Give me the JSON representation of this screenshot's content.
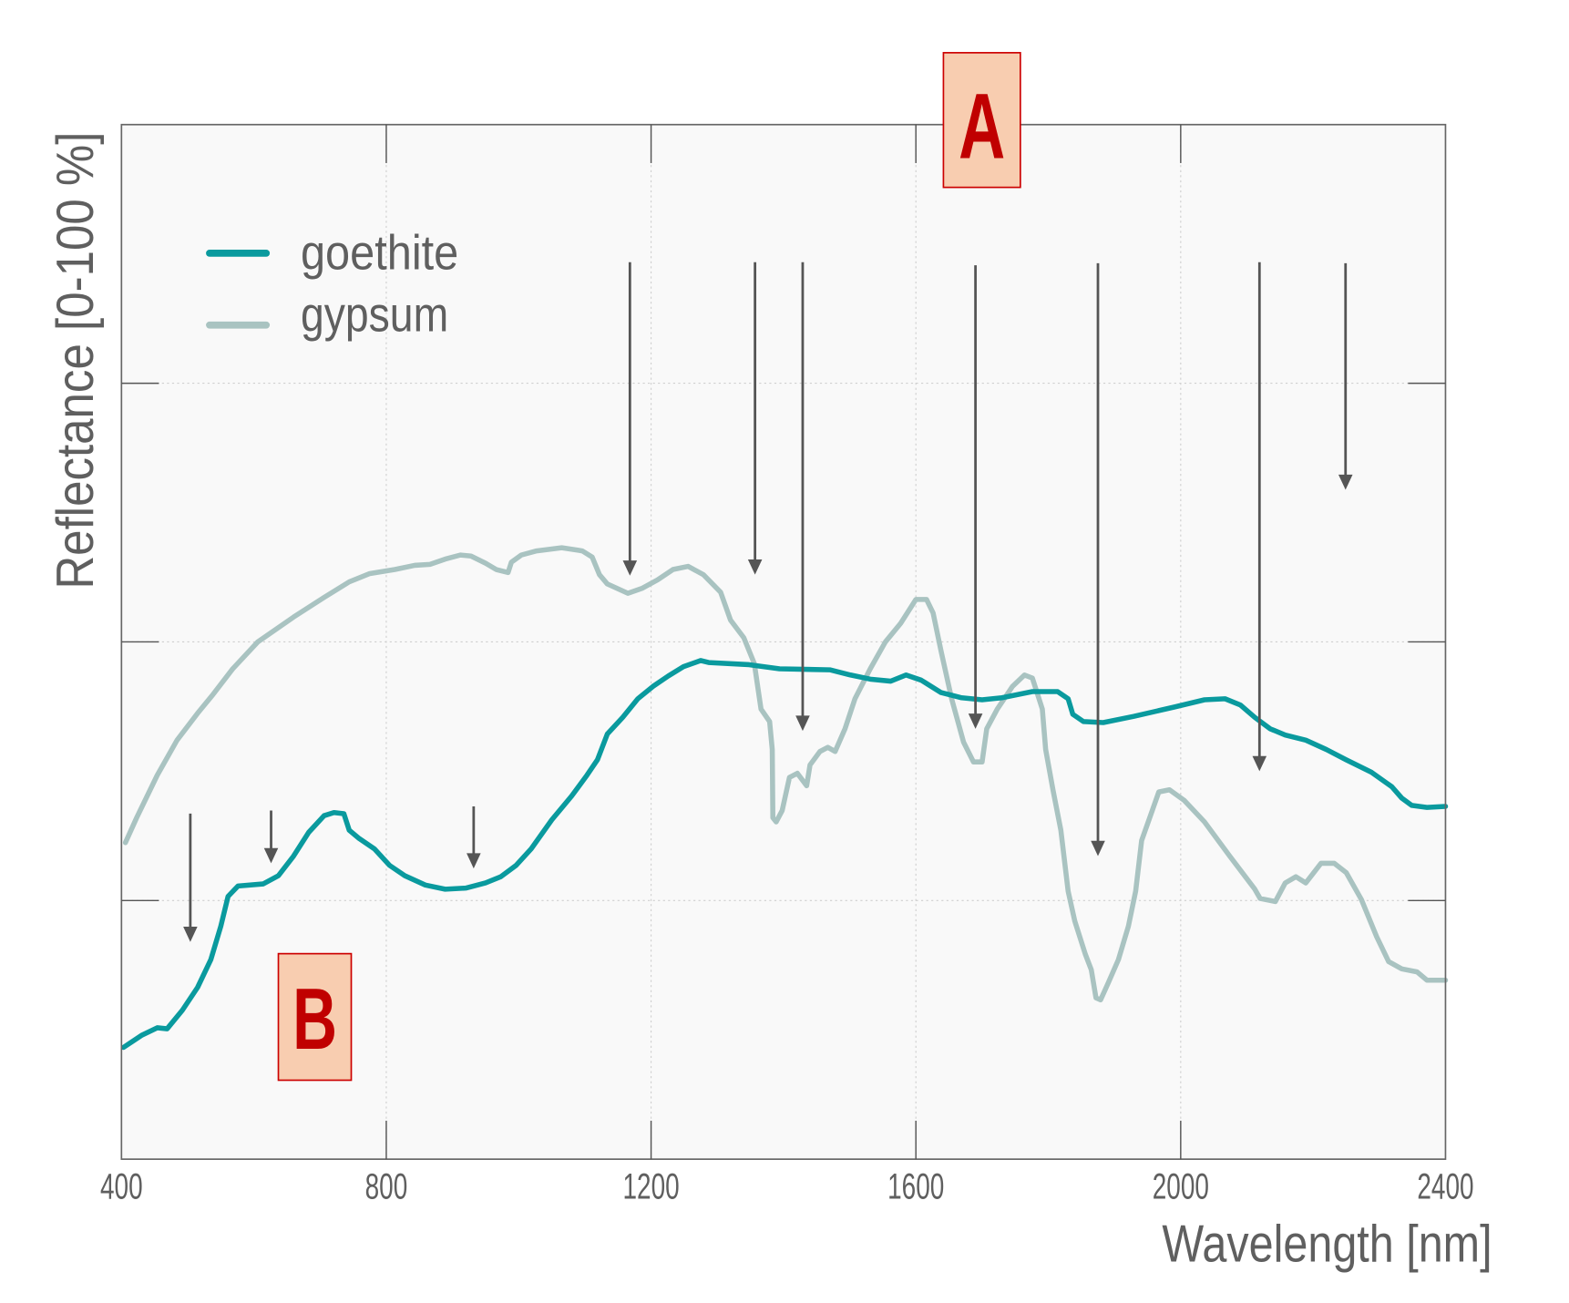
{
  "chart_data": {
    "type": "line",
    "title": "",
    "xlabel": "Wavelength [nm]",
    "ylabel": "Reflectance [0-100 %]",
    "xlim": [
      400,
      2400
    ],
    "ylim": [
      0,
      100
    ],
    "xticks": [
      400,
      800,
      1200,
      1600,
      2000,
      2400
    ],
    "xtick_labels": [
      "400",
      "800",
      "1200",
      "1600",
      "2000",
      "2400"
    ],
    "yticks": [
      25,
      50,
      75
    ],
    "grid": true,
    "legend_position": "top-left",
    "colors": {
      "goethite": "#0a9a9e",
      "gypsum": "#a9c3c1",
      "arrow": "#555555",
      "box_fill": "#f8cdb0",
      "box_border": "#cc0000",
      "box_text": "#c00000"
    },
    "series": [
      {
        "name": "goethite",
        "x": [
          403,
          431,
          454,
          469,
          492,
          515,
          535,
          550,
          561,
          576,
          614,
          637,
          660,
          683,
          706,
          721,
          736,
          744,
          759,
          782,
          805,
          828,
          859,
          889,
          920,
          950,
          973,
          996,
          1019,
          1050,
          1080,
          1103,
          1119,
          1134,
          1157,
          1180,
          1203,
          1226,
          1249,
          1275,
          1287,
          1348,
          1394,
          1470,
          1501,
          1531,
          1562,
          1585,
          1608,
          1638,
          1669,
          1700,
          1730,
          1776,
          1814,
          1830,
          1837,
          1853,
          1883,
          1929,
          1990,
          2036,
          2067,
          2090,
          2112,
          2135,
          2158,
          2189,
          2220,
          2250,
          2288,
          2319,
          2334,
          2349,
          2372,
          2400
        ],
        "y": [
          10.8,
          12.0,
          12.7,
          12.6,
          14.4,
          16.6,
          19.3,
          22.5,
          25.4,
          26.4,
          26.6,
          27.4,
          29.3,
          31.6,
          33.2,
          33.5,
          33.4,
          31.8,
          31.0,
          30.0,
          28.4,
          27.4,
          26.5,
          26.1,
          26.2,
          26.7,
          27.3,
          28.4,
          30.0,
          32.8,
          35.1,
          37.1,
          38.6,
          41.1,
          42.7,
          44.5,
          45.7,
          46.7,
          47.6,
          48.2,
          48.0,
          47.8,
          47.4,
          47.3,
          46.8,
          46.4,
          46.2,
          46.8,
          46.3,
          45.1,
          44.6,
          44.4,
          44.6,
          45.2,
          45.2,
          44.5,
          43.0,
          42.3,
          42.2,
          42.8,
          43.7,
          44.4,
          44.5,
          43.9,
          42.7,
          41.6,
          41.0,
          40.5,
          39.6,
          38.6,
          37.4,
          36.0,
          34.9,
          34.2,
          34.0,
          34.1
        ]
      },
      {
        "name": "gypsum",
        "x": [
          406,
          423,
          454,
          484,
          515,
          538,
          568,
          606,
          660,
          706,
          744,
          775,
          813,
          843,
          866,
          889,
          912,
          928,
          950,
          966,
          984,
          989,
          1004,
          1027,
          1065,
          1096,
          1111,
          1122,
          1134,
          1165,
          1187,
          1210,
          1233,
          1256,
          1279,
          1305,
          1320,
          1340,
          1356,
          1366,
          1379,
          1383,
          1384,
          1389,
          1398,
          1409,
          1421,
          1435,
          1440,
          1455,
          1467,
          1478,
          1493,
          1508,
          1531,
          1554,
          1577,
          1600,
          1616,
          1626,
          1638,
          1654,
          1672,
          1687,
          1700,
          1707,
          1723,
          1746,
          1764,
          1776,
          1791,
          1796,
          1807,
          1819,
          1830,
          1840,
          1856,
          1865,
          1872,
          1879,
          1891,
          1906,
          1921,
          1932,
          1941,
          1957,
          1967,
          1983,
          2005,
          2036,
          2074,
          2112,
          2120,
          2143,
          2158,
          2174,
          2189,
          2212,
          2232,
          2250,
          2273,
          2296,
          2314,
          2334,
          2357,
          2372,
          2400
        ],
        "y": [
          30.6,
          33.0,
          37.1,
          40.5,
          43.1,
          44.9,
          47.4,
          50.0,
          52.4,
          54.3,
          55.8,
          56.6,
          57.0,
          57.4,
          57.5,
          58.0,
          58.4,
          58.3,
          57.6,
          57.0,
          56.7,
          57.7,
          58.4,
          58.8,
          59.1,
          58.8,
          58.2,
          56.5,
          55.6,
          54.7,
          55.2,
          56.0,
          57.0,
          57.3,
          56.5,
          54.8,
          52.1,
          50.4,
          47.9,
          43.5,
          42.3,
          39.6,
          33.0,
          32.6,
          33.7,
          36.9,
          37.3,
          36.1,
          38.1,
          39.4,
          39.8,
          39.4,
          41.6,
          44.5,
          47.4,
          50.0,
          51.8,
          54.1,
          54.1,
          52.8,
          49.1,
          44.5,
          40.3,
          38.4,
          38.4,
          41.6,
          43.5,
          45.7,
          46.8,
          46.5,
          43.5,
          39.6,
          35.7,
          31.8,
          25.9,
          23.0,
          19.8,
          18.3,
          15.6,
          15.4,
          17.1,
          19.3,
          22.5,
          25.9,
          30.8,
          33.7,
          35.5,
          35.7,
          34.7,
          32.6,
          29.3,
          26.1,
          25.2,
          24.9,
          26.7,
          27.3,
          26.7,
          28.6,
          28.6,
          27.7,
          25.1,
          21.5,
          19.1,
          18.4,
          18.1,
          17.3,
          17.3
        ]
      }
    ],
    "arrows": [
      {
        "x": 504,
        "y_from": 33.4,
        "y_to": 21.0
      },
      {
        "x": 626,
        "y_from": 33.7,
        "y_to": 28.6
      },
      {
        "x": 932,
        "y_from": 34.1,
        "y_to": 28.1
      },
      {
        "x": 1168,
        "y_from": 86.7,
        "y_to": 56.4
      },
      {
        "x": 1357,
        "y_from": 86.7,
        "y_to": 56.5
      },
      {
        "x": 1429,
        "y_from": 86.7,
        "y_to": 41.4
      },
      {
        "x": 1690,
        "y_from": 86.4,
        "y_to": 41.6
      },
      {
        "x": 1875,
        "y_from": 86.6,
        "y_to": 29.3
      },
      {
        "x": 2119,
        "y_from": 86.7,
        "y_to": 37.5
      },
      {
        "x": 2249,
        "y_from": 86.6,
        "y_to": 64.7
      }
    ],
    "annotations": [
      {
        "label": "A"
      },
      {
        "label": "B"
      }
    ]
  }
}
